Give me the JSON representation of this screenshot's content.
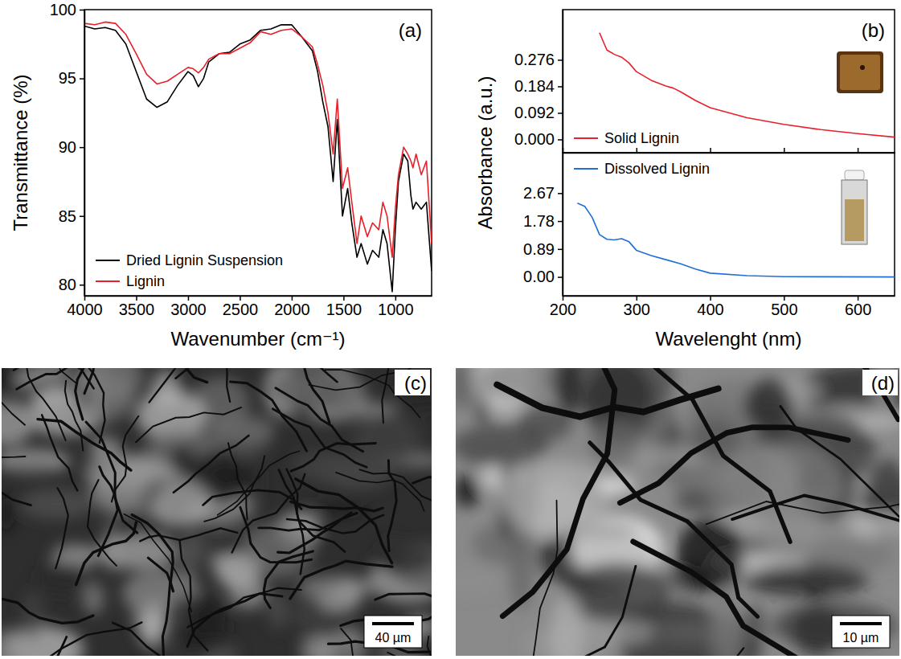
{
  "chart_data": [
    {
      "type": "line",
      "title": "(a)",
      "xlabel": "Wavenumber (cm⁻¹)",
      "ylabel": "Transmittance (%)",
      "x": [
        4000,
        3900,
        3800,
        3700,
        3600,
        3500,
        3400,
        3300,
        3200,
        3100,
        3000,
        2950,
        2900,
        2850,
        2800,
        2700,
        2600,
        2500,
        2400,
        2300,
        2200,
        2100,
        2000,
        1900,
        1800,
        1750,
        1700,
        1650,
        1600,
        1560,
        1510,
        1460,
        1420,
        1370,
        1330,
        1270,
        1220,
        1160,
        1120,
        1080,
        1030,
        1000,
        970,
        920,
        880,
        850,
        830,
        800,
        750,
        700,
        650
      ],
      "series": [
        {
          "name": "Dried Lignin Suspension",
          "color": "#000000",
          "values": [
            98.8,
            98.6,
            98.7,
            98.5,
            97.5,
            95.5,
            93.5,
            92.9,
            93.3,
            94.5,
            95.5,
            95.2,
            94.4,
            95.0,
            96.2,
            96.8,
            96.9,
            97.5,
            97.8,
            98.5,
            98.6,
            98.9,
            98.9,
            98.0,
            97.0,
            95.5,
            93.3,
            91.5,
            87.5,
            92.0,
            85.0,
            87.0,
            84.5,
            82.0,
            83.0,
            81.5,
            82.5,
            82.0,
            84.0,
            83.0,
            79.5,
            84.0,
            87.5,
            89.5,
            89.0,
            86.5,
            85.5,
            86.0,
            85.5,
            86.0,
            81.0
          ]
        },
        {
          "name": "Lignin",
          "color": "#e8202a",
          "values": [
            99.0,
            98.9,
            99.1,
            99.0,
            98.2,
            96.8,
            95.3,
            94.6,
            94.8,
            95.3,
            95.8,
            95.7,
            95.4,
            95.8,
            96.4,
            96.8,
            96.8,
            97.2,
            97.6,
            98.4,
            98.2,
            98.5,
            98.6,
            98.0,
            97.3,
            96.0,
            94.5,
            92.5,
            89.5,
            93.5,
            87.0,
            88.5,
            86.0,
            83.0,
            85.0,
            83.5,
            84.5,
            84.0,
            86.0,
            85.0,
            82.0,
            85.5,
            88.0,
            90.0,
            89.5,
            89.0,
            88.5,
            89.5,
            88.0,
            89.0,
            83.0
          ]
        }
      ],
      "xlim": [
        4000,
        650
      ],
      "xticks": [
        4000,
        3500,
        3000,
        2500,
        2000,
        1500,
        1000
      ],
      "ylim": [
        79.2,
        100
      ],
      "yticks": [
        80,
        85,
        90,
        95,
        100
      ],
      "legend": "lower left"
    },
    {
      "type": "line",
      "title": "(b)",
      "ylabel": "Absorbance (a.u.)",
      "x": [
        250,
        260,
        270,
        280,
        290,
        300,
        320,
        340,
        350,
        360,
        380,
        400,
        450,
        500,
        550,
        600,
        650
      ],
      "series": [
        {
          "name": "Solid Lignin",
          "color": "#e8202a",
          "values": [
            0.37,
            0.31,
            0.295,
            0.285,
            0.265,
            0.235,
            0.205,
            0.185,
            0.178,
            0.165,
            0.135,
            0.11,
            0.075,
            0.052,
            0.034,
            0.02,
            0.008
          ]
        }
      ],
      "xlim": [
        200,
        650
      ],
      "xticks": [
        200,
        300,
        400,
        500,
        600
      ],
      "ylim": [
        -0.046,
        0.45
      ],
      "yticks": [
        {
          "value": 0,
          "label": "0.000"
        },
        0.092,
        0.184,
        0.276
      ],
      "tick_labels": "y",
      "legend": "lower left"
    },
    {
      "type": "line",
      "xlabel": "Wavelenght (nm)",
      "x": [
        220,
        230,
        240,
        250,
        260,
        270,
        280,
        290,
        300,
        320,
        340,
        360,
        380,
        400,
        450,
        500,
        550,
        650
      ],
      "series": [
        {
          "name": "Dissolved Lignin",
          "color": "#1f6fd6",
          "values": [
            2.35,
            2.25,
            1.9,
            1.35,
            1.2,
            1.18,
            1.22,
            1.12,
            0.85,
            0.68,
            0.55,
            0.42,
            0.25,
            0.12,
            0.04,
            0.01,
            0.005,
            0.0
          ]
        }
      ],
      "xlim": [
        200,
        650
      ],
      "xticks": [
        200,
        300,
        400,
        500,
        600
      ],
      "ylim": [
        -0.6,
        3.96
      ],
      "yticks": [
        {
          "value": 0,
          "label": "0.00"
        },
        0.89,
        1.78,
        2.67
      ],
      "legend": "upper left"
    },
    {
      "type": "image",
      "title": "(c)",
      "annotations": [
        "40 µm"
      ]
    },
    {
      "type": "image",
      "title": "(d)",
      "annotations": [
        "10 µm"
      ]
    }
  ]
}
